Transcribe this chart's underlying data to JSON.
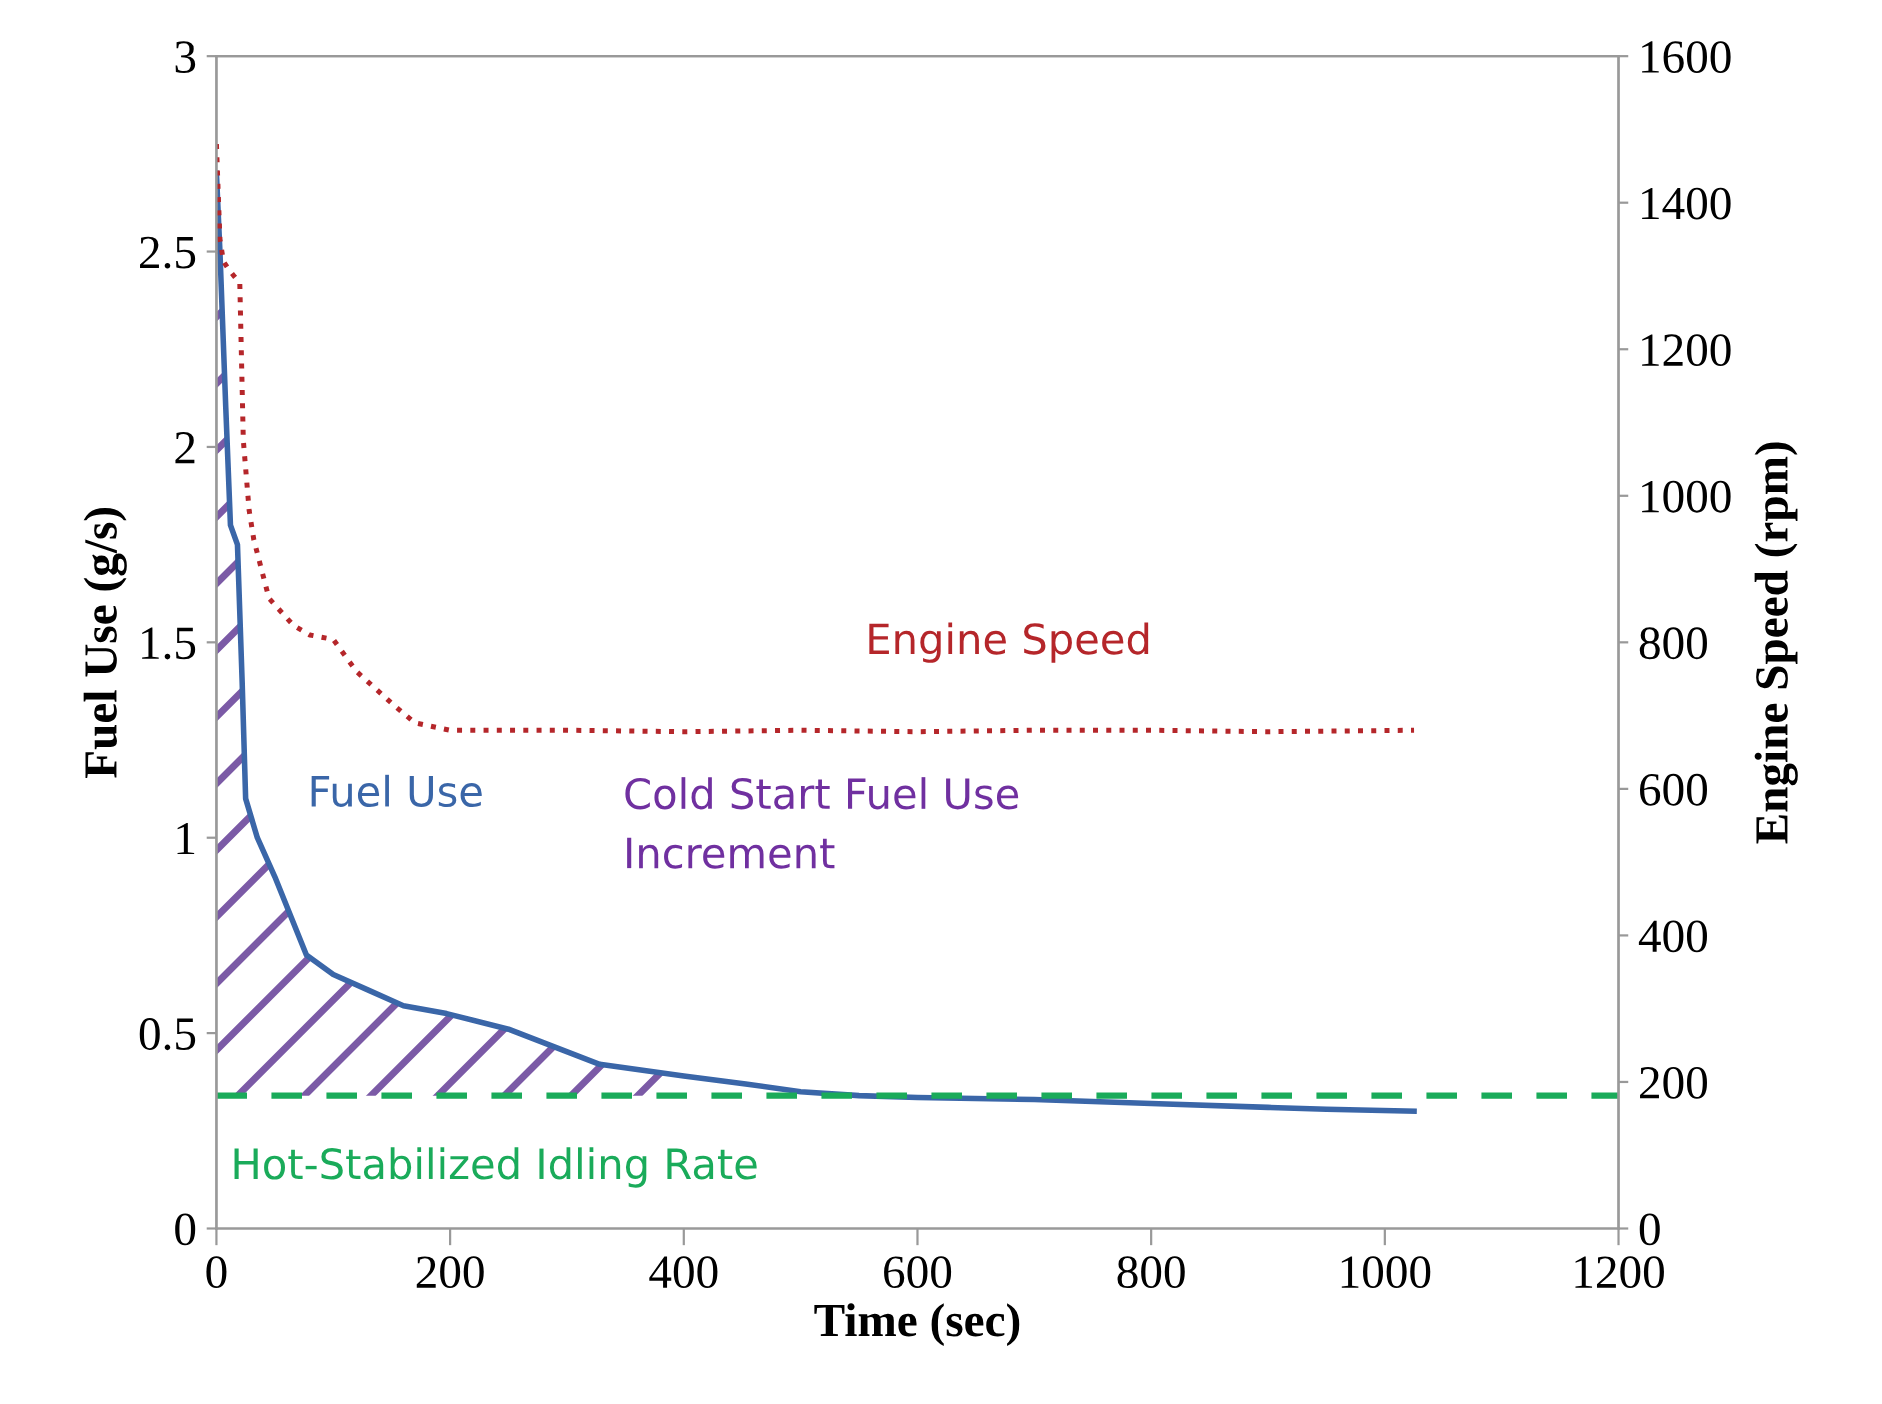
{
  "chart_data": {
    "type": "line",
    "xlabel": "Time (sec)",
    "ylabel": "Fuel Use (g/s)",
    "y2label": "Engine Speed (rpm)",
    "xlim": [
      0,
      1200
    ],
    "xticks": [
      0,
      200,
      400,
      600,
      800,
      1000,
      1200
    ],
    "ylim": [
      0,
      3
    ],
    "yticks": [
      0,
      0.5,
      1,
      1.5,
      2,
      2.5,
      3
    ],
    "y2lim": [
      0,
      1600
    ],
    "y2ticks": [
      0,
      200,
      400,
      600,
      800,
      1000,
      1200,
      1400,
      1600
    ],
    "grid": false,
    "legend": false,
    "series": [
      {
        "name": "Fuel Use",
        "color": "#3a66a8",
        "line_style": "solid",
        "x": [
          0,
          3,
          8,
          12,
          18,
          22,
          25,
          35,
          50,
          77,
          100,
          130,
          160,
          197,
          250,
          328,
          400,
          453,
          500,
          550,
          600,
          700,
          800,
          900,
          950,
          1025
        ],
        "values": [
          2.7,
          2.5,
          2.1,
          1.8,
          1.75,
          1.4,
          1.1,
          1.0,
          0.9,
          0.7,
          0.65,
          0.61,
          0.57,
          0.55,
          0.51,
          0.42,
          0.39,
          0.37,
          0.35,
          0.34,
          0.335,
          0.33,
          0.32,
          0.31,
          0.305,
          0.3
        ]
      },
      {
        "name": "Engine Speed",
        "color": "#b5262a",
        "axis": "y2",
        "line_style": "dotted",
        "x": [
          0,
          3,
          6,
          10,
          15,
          20,
          23,
          28,
          32,
          45,
          66,
          80,
          100,
          120,
          152,
          170,
          200,
          300,
          400,
          500,
          600,
          700,
          800,
          900,
          1025
        ],
        "values": [
          1480,
          1350,
          1320,
          1310,
          1300,
          1290,
          1076,
          980,
          940,
          860,
          823,
          810,
          804,
          760,
          714,
          690,
          680,
          680,
          678,
          680,
          678,
          680,
          680,
          678,
          680
        ]
      }
    ],
    "ref_lines": [
      {
        "axis": "y",
        "value": 0.34,
        "label": "Hot-Stabilized Idling Rate",
        "color": "#1aab5a",
        "line_style": "dashed"
      }
    ],
    "annotations": [
      "Cold Start Fuel Use Increment"
    ]
  }
}
